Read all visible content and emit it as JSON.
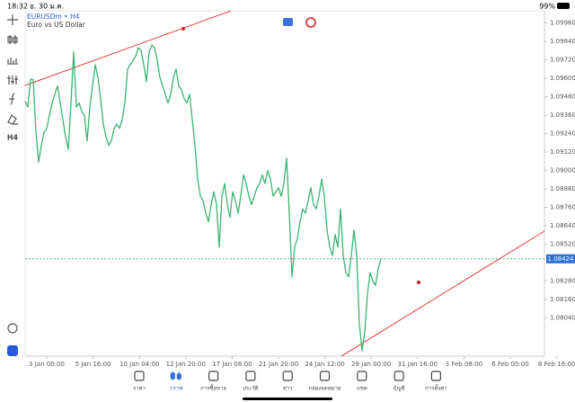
{
  "status_bar": {
    "time": "18:32",
    "date": "อ. 30 ม.ค.",
    "battery": "99%"
  },
  "chart_header": {
    "symbol": "EURUSDm • H4",
    "description": "Euro vs US Dollar"
  },
  "left_toolbar": {
    "timeframe": "H4"
  },
  "chart_data": {
    "type": "line",
    "color": "#3cb371",
    "values": [
      1.09451,
      1.09413,
      1.09595,
      1.0959,
      1.09247,
      1.09053,
      1.09164,
      1.09247,
      1.09274,
      1.09357,
      1.0944,
      1.09496,
      1.09551,
      1.0944,
      1.0933,
      1.09219,
      1.09136,
      1.0944,
      1.09772,
      1.09413,
      1.0944,
      1.09385,
      1.09357,
      1.09191,
      1.09413,
      1.09551,
      1.09689,
      1.09606,
      1.09468,
      1.09302,
      1.09219,
      1.09164,
      1.09191,
      1.09274,
      1.09302,
      1.09274,
      1.0933,
      1.0944,
      1.09661,
      1.09689,
      1.09717,
      1.09744,
      1.098,
      1.09783,
      1.09689,
      1.09578,
      1.09772,
      1.09816,
      1.098,
      1.09717,
      1.09606,
      1.09551,
      1.09496,
      1.0944,
      1.09496,
      1.09606,
      1.09661,
      1.09551,
      1.09523,
      1.09468,
      1.0944,
      1.09496,
      1.0933,
      1.09164,
      1.08943,
      1.08832,
      1.08804,
      1.08721,
      1.08666,
      1.08777,
      1.0886,
      1.08777,
      1.085,
      1.08832,
      1.08915,
      1.08777,
      1.08694,
      1.0886,
      1.08804,
      1.08721,
      1.08832,
      1.0897,
      1.08915,
      1.08832,
      1.08777,
      1.08832,
      1.08887,
      1.08915,
      1.0897,
      1.08915,
      1.08998,
      1.08943,
      1.08832,
      1.0886,
      1.08887,
      1.08832,
      1.08915,
      1.09081,
      1.08721,
      1.08307,
      1.085,
      1.08555,
      1.08666,
      1.08749,
      1.08721,
      1.08804,
      1.08887,
      1.08777,
      1.08749,
      1.08832,
      1.08943,
      1.08832,
      1.08611,
      1.085,
      1.08445,
      1.08583,
      1.085,
      1.08749,
      1.08445,
      1.08334,
      1.08307,
      1.08445,
      1.08611,
      1.08445,
      1.08002,
      1.07825,
      1.07947,
      1.08196,
      1.08334,
      1.08279,
      1.08251,
      1.08362,
      1.08424
    ],
    "current_price": 1.08424,
    "ylim": [
      1.0779,
      1.1004
    ],
    "yticks": [
      {
        "value": 1.0996,
        "label": "1.09960"
      },
      {
        "value": 1.0984,
        "label": "1.09840"
      },
      {
        "value": 1.0972,
        "label": "1.09720"
      },
      {
        "value": 1.096,
        "label": "1.09600"
      },
      {
        "value": 1.0948,
        "label": "1.09480"
      },
      {
        "value": 1.0936,
        "label": "1.09360"
      },
      {
        "value": 1.0924,
        "label": "1.09240"
      },
      {
        "value": 1.0912,
        "label": "1.09120"
      },
      {
        "value": 1.09,
        "label": "1.09000"
      },
      {
        "value": 1.0888,
        "label": "1.08880"
      },
      {
        "value": 1.0876,
        "label": "1.08760"
      },
      {
        "value": 1.0864,
        "label": "1.08640"
      },
      {
        "value": 1.0852,
        "label": "1.08520"
      },
      {
        "value": 1.0828,
        "label": "1.08280"
      },
      {
        "value": 1.0816,
        "label": "1.08160"
      },
      {
        "value": 1.0804,
        "label": "1.08040"
      }
    ],
    "xlim": [
      0,
      192.67
    ],
    "xticks": [
      {
        "value": 8,
        "label": "3 Jan 00:00"
      },
      {
        "value": 25.2,
        "label": "5 Jan 16:00"
      },
      {
        "value": 42.4,
        "label": "10 Jan 04:00"
      },
      {
        "value": 59.6,
        "label": "12 Jan 20:00"
      },
      {
        "value": 76.8,
        "label": "17 Jan 08:00"
      },
      {
        "value": 94,
        "label": "21 Jan 20:00"
      },
      {
        "value": 111.2,
        "label": "24 Jan 12:00"
      },
      {
        "value": 128.4,
        "label": "29 Jan 00:00"
      },
      {
        "value": 145.6,
        "label": "31 Jan 16:00"
      },
      {
        "value": 162.8,
        "label": "3 Feb 08:00"
      },
      {
        "value": 180,
        "label": "6 Feb 00:00"
      },
      {
        "value": 197.2,
        "label": "8 Feb 16:00"
      }
    ]
  },
  "bottom_nav": {
    "items": [
      "ราคา",
      "กราฟ",
      "การซื้อขาย",
      "ประวัติ",
      "ข่าว",
      "กล่องจดหมาย",
      "แชท",
      "บัญชี",
      "การตั้งค่า"
    ]
  }
}
